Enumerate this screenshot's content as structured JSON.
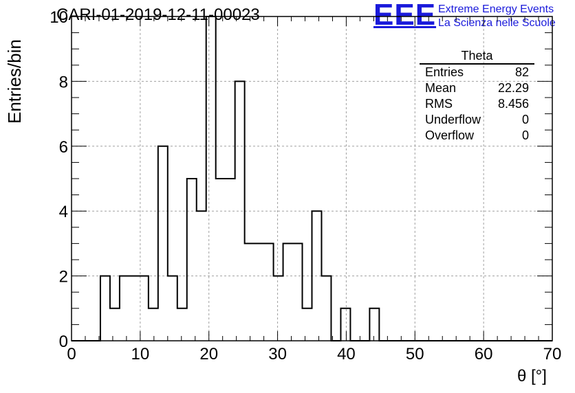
{
  "chart_data": {
    "type": "histogram",
    "title": "CARI-01-2019-12-11-00023",
    "xlabel": "θ [°]",
    "ylabel": "Entries/bin",
    "xlim": [
      0,
      70
    ],
    "ylim": [
      0,
      10
    ],
    "xticks": [
      "0",
      "10",
      "20",
      "30",
      "40",
      "50",
      "60",
      "70"
    ],
    "yticks": [
      "0",
      "2",
      "4",
      "6",
      "8",
      "10"
    ],
    "grid": true,
    "bin_edges": [
      0,
      1.4,
      2.8,
      4.2,
      5.6,
      7,
      8.4,
      9.8,
      11.2,
      12.6,
      14,
      15.4,
      16.8,
      18.2,
      19.6,
      21,
      22.4,
      23.8,
      25.2,
      26.6,
      28,
      29.4,
      30.8,
      32.2,
      33.6,
      35,
      36.4,
      37.8,
      39.2,
      40.6,
      42,
      43.4,
      44.8,
      46.2,
      47.6,
      49,
      50.4,
      51.8,
      53.2,
      54.6,
      56,
      57.4,
      58.8,
      60.2,
      61.6,
      63,
      64.4,
      65.8,
      67.2,
      68.6,
      70
    ],
    "counts": [
      0,
      0,
      0,
      2,
      1,
      2,
      2,
      2,
      1,
      6,
      2,
      1,
      5,
      4,
      10,
      5,
      5,
      8,
      3,
      3,
      3,
      2,
      3,
      3,
      1,
      4,
      2,
      0,
      1,
      0,
      0,
      1,
      0,
      0,
      0,
      0,
      0,
      0,
      0,
      0,
      0,
      0,
      0,
      0,
      0,
      0,
      0,
      0,
      0,
      0
    ],
    "stats": {
      "name": "Theta",
      "rows": [
        {
          "key": "Entries",
          "value": "82"
        },
        {
          "key": "Mean",
          "value": "22.29"
        },
        {
          "key": "RMS",
          "value": "8.456"
        },
        {
          "key": "Underflow",
          "value": "0"
        },
        {
          "key": "Overflow",
          "value": "0"
        }
      ]
    }
  },
  "logo": {
    "mark": "EEE",
    "line1": "Extreme Energy Events",
    "line2": "La Scienza nelle Scuole",
    "color": "#1a1adb"
  }
}
